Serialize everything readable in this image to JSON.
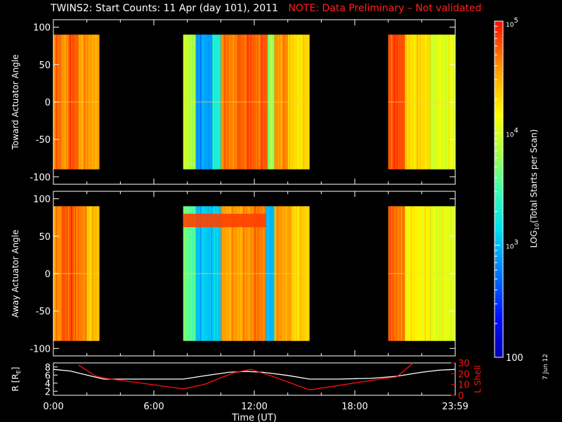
{
  "title": {
    "text": "TWINS2: Start Counts: 11 Apr (day 101), 2011",
    "note": "NOTE: Data Preliminary – Not validated",
    "note_color": "#ff2020"
  },
  "date_stamp": "7 Jun 12",
  "colorbar": {
    "label": "LOG10(Total Starts per Scan)",
    "label_main": "LOG",
    "label_sub": "10",
    "label_rest": "(Total Starts per Scan)",
    "min": 100,
    "max": 100000,
    "ticks": [
      {
        "label": "100",
        "value": 100
      },
      {
        "label": "10",
        "sup": "3",
        "value": 1000
      },
      {
        "label": "10",
        "sup": "4",
        "value": 10000
      },
      {
        "label": "10",
        "sup": "5",
        "value": 100000
      }
    ]
  },
  "chart_data": [
    {
      "type": "heatmap",
      "name": "toward",
      "ylabel": "Toward Actuator Angle",
      "ylim": [
        -110,
        110
      ],
      "yticks": [
        100,
        50,
        0,
        -50,
        -100
      ],
      "angle_range": [
        -90,
        90
      ],
      "xlim_hours": [
        0,
        24
      ],
      "data_intervals_hours": [
        [
          0.0,
          2.75
        ],
        [
          7.75,
          15.3
        ],
        [
          20.0,
          24.0
        ]
      ],
      "segments": [
        {
          "from": 0.0,
          "to": 0.45,
          "log": 4.7
        },
        {
          "from": 0.45,
          "to": 0.9,
          "log": 4.6
        },
        {
          "from": 0.9,
          "to": 1.5,
          "log": 4.75
        },
        {
          "from": 1.5,
          "to": 2.75,
          "log": 4.55
        },
        {
          "from": 7.75,
          "to": 8.5,
          "log": 3.9
        },
        {
          "from": 8.5,
          "to": 9.5,
          "log": 2.9
        },
        {
          "from": 9.5,
          "to": 10.0,
          "log": 3.3
        },
        {
          "from": 10.0,
          "to": 11.0,
          "log": 4.65
        },
        {
          "from": 11.0,
          "to": 12.8,
          "log": 4.75
        },
        {
          "from": 12.8,
          "to": 13.2,
          "log": 3.8
        },
        {
          "from": 13.2,
          "to": 14.0,
          "log": 4.6
        },
        {
          "from": 14.0,
          "to": 15.3,
          "log": 4.3
        },
        {
          "from": 20.0,
          "to": 21.0,
          "log": 4.8
        },
        {
          "from": 21.0,
          "to": 22.5,
          "log": 4.3
        },
        {
          "from": 22.5,
          "to": 24.0,
          "log": 4.05
        }
      ]
    },
    {
      "type": "heatmap",
      "name": "away",
      "ylabel": "Away Actuator Angle",
      "ylim": [
        -110,
        110
      ],
      "yticks": [
        100,
        50,
        0,
        -50,
        -100
      ],
      "angle_range": [
        -90,
        90
      ],
      "xlim_hours": [
        0,
        24
      ],
      "data_intervals_hours": [
        [
          0.0,
          2.75
        ],
        [
          7.75,
          15.3
        ],
        [
          20.0,
          24.0
        ]
      ],
      "segments": [
        {
          "from": 0.0,
          "to": 0.5,
          "log": 4.6
        },
        {
          "from": 0.5,
          "to": 1.2,
          "log": 4.8
        },
        {
          "from": 1.2,
          "to": 2.0,
          "log": 4.65
        },
        {
          "from": 2.0,
          "to": 2.75,
          "log": 4.4
        },
        {
          "from": 7.75,
          "to": 8.5,
          "log": 3.6
        },
        {
          "from": 8.5,
          "to": 10.0,
          "log": 3.05
        },
        {
          "from": 10.0,
          "to": 11.8,
          "log": 4.55
        },
        {
          "from": 11.8,
          "to": 12.7,
          "log": 4.65
        },
        {
          "from": 12.7,
          "to": 13.2,
          "log": 3.0
        },
        {
          "from": 13.2,
          "to": 14.2,
          "log": 4.55
        },
        {
          "from": 14.2,
          "to": 15.3,
          "log": 4.35
        },
        {
          "from": 20.0,
          "to": 21.0,
          "log": 4.7
        },
        {
          "from": 21.0,
          "to": 22.5,
          "log": 4.2
        },
        {
          "from": 22.5,
          "to": 24.0,
          "log": 4.05
        }
      ],
      "band": {
        "angle_from": 62,
        "angle_to": 80,
        "hours_from": 7.75,
        "hours_to": 12.7,
        "log": 4.85
      }
    },
    {
      "type": "line",
      "name": "orbit",
      "xlabel": "Time (UT)",
      "x_tick_labels": [
        "0:00",
        "6:00",
        "12:00",
        "18:00",
        "23:59"
      ],
      "x_tick_hours": [
        0,
        6,
        12,
        18,
        24
      ],
      "ylabel": "R [RE]",
      "ylabel_main": "R [R",
      "ylabel_sub": "E",
      "ylabel_end": "]",
      "ylim": [
        1,
        9
      ],
      "yticks": [
        2,
        4,
        6,
        8
      ],
      "y2label": "L Shell",
      "y2lim": [
        0,
        30
      ],
      "y2ticks": [
        0,
        10,
        20,
        30
      ],
      "series": [
        {
          "axis": "left",
          "color": "#ffffff",
          "x": [
            0,
            1,
            2,
            3,
            5,
            7.75,
            9,
            10.5,
            11.5,
            12.5,
            14,
            15.3,
            17,
            19,
            20.5,
            22,
            23,
            24
          ],
          "y": [
            7.4,
            7.0,
            6.0,
            5.0,
            5.0,
            5.0,
            5.8,
            6.7,
            6.9,
            6.7,
            5.9,
            5.0,
            5.0,
            5.2,
            5.7,
            6.7,
            7.2,
            7.4
          ]
        },
        {
          "axis": "right",
          "color": "#ff1010",
          "x": [
            1.5,
            2.5,
            3.0,
            7.75,
            9.0,
            10.8,
            11.8,
            13.0,
            15.3,
            17.0,
            19.5,
            20.5,
            21.5
          ],
          "y": [
            28,
            18,
            16,
            6,
            10,
            21,
            24,
            18,
            5,
            9,
            15,
            17,
            30
          ]
        }
      ]
    }
  ]
}
